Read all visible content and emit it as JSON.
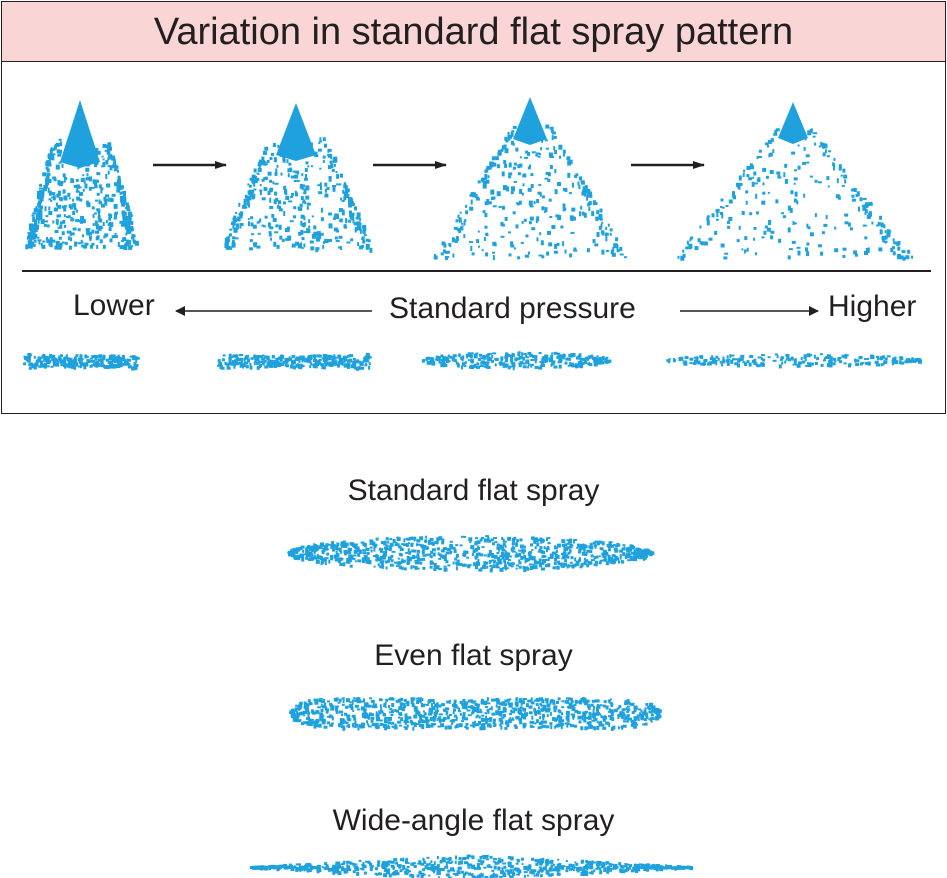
{
  "panel": {
    "title": "Variation in standard flat spray pattern",
    "lower_label": "Lower",
    "pressure_label": "Standard pressure",
    "higher_label": "Higher"
  },
  "patterns": [
    {
      "caption": "Standard flat spray"
    },
    {
      "caption": "Even flat spray"
    },
    {
      "caption": "Wide-angle flat spray"
    }
  ],
  "colors": {
    "spray": "#1ea1dc",
    "title_bg": "#f9d5d5",
    "ink": "#231f20"
  },
  "icons": [
    "arrow-right-icon",
    "arrow-left-icon"
  ]
}
